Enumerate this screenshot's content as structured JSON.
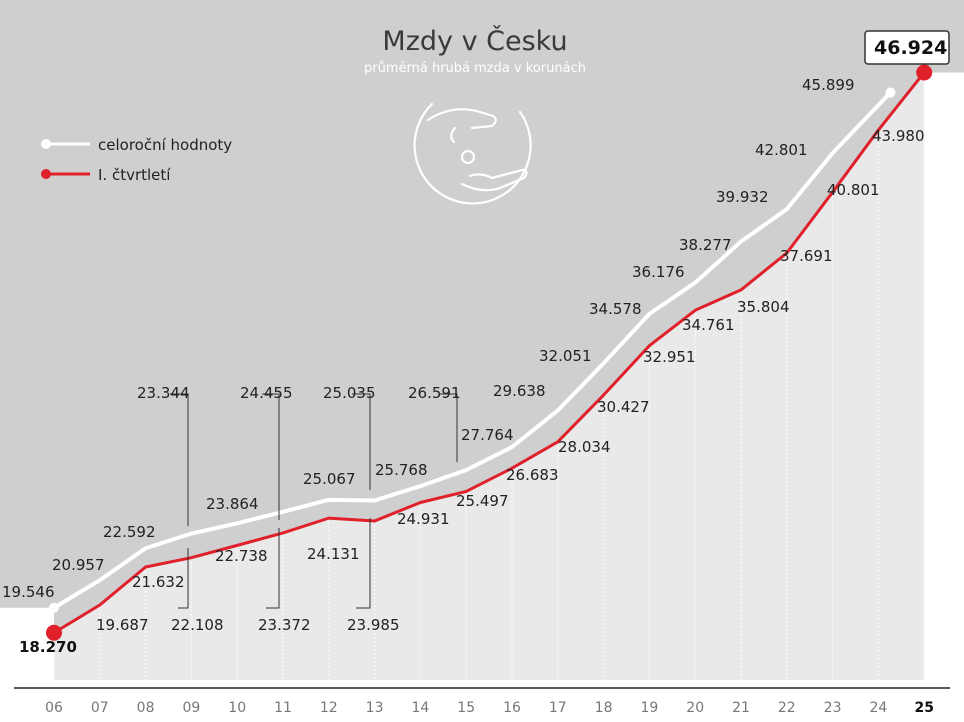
{
  "chart_data": {
    "type": "line",
    "title": "Mzdy v Česku",
    "subtitle": "průměrná hrubá mzda v korunách",
    "categories": [
      "06",
      "07",
      "08",
      "09",
      "10",
      "11",
      "12",
      "13",
      "14",
      "15",
      "16",
      "17",
      "18",
      "19",
      "20",
      "21",
      "22",
      "23",
      "24",
      "25"
    ],
    "series": [
      {
        "name": "celoroční hodnoty",
        "color": "#ffffff",
        "values": [
          19546,
          20957,
          22592,
          23344,
          23864,
          24455,
          25067,
          25035,
          25768,
          26591,
          27764,
          29638,
          32051,
          34578,
          36176,
          38277,
          39932,
          42801,
          45899,
          null
        ],
        "labels": [
          "19.546",
          "20.957",
          "22.592",
          "23.344",
          "23.864",
          "24.455",
          "25.067",
          "25.035",
          "25.768",
          "26.591",
          "27.764",
          "29.638",
          "32.051",
          "34.578",
          "36.176",
          "38.277",
          "39.932",
          "42.801",
          "45.899",
          ""
        ]
      },
      {
        "name": "I. čtvrtletí",
        "color": "#e0202a",
        "values": [
          18270,
          19687,
          21632,
          22108,
          22738,
          23372,
          24131,
          23985,
          24931,
          25497,
          26683,
          28034,
          30427,
          32951,
          34761,
          35804,
          37691,
          40801,
          43980,
          46924
        ],
        "labels": [
          "18.270",
          "19.687",
          "21.632",
          "22.108",
          "22.738",
          "23.372",
          "24.131",
          "23.985",
          "24.931",
          "25.497",
          "26.683",
          "28.034",
          "30.427",
          "32.951",
          "34.761",
          "35.804",
          "37.691",
          "40.801",
          "43.980",
          "46.924"
        ]
      }
    ],
    "highlight": {
      "first": "18.270",
      "last": "46.924"
    },
    "legend_position": "top-left",
    "grid": true
  },
  "colors": {
    "background": "#cfcfcf",
    "area": "#e9e9e9",
    "white_line": "#ffffff",
    "red_line": "#e0202a"
  },
  "icon": "hands-coin-icon"
}
